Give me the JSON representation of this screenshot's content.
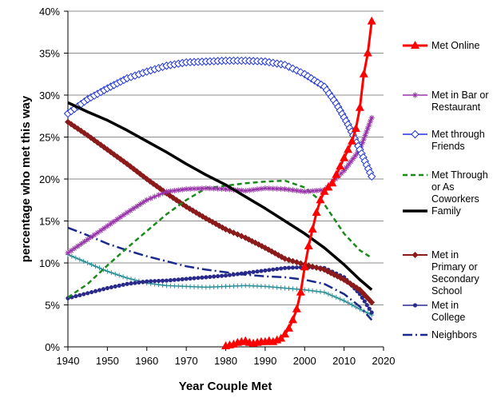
{
  "chart_data": {
    "type": "line",
    "title": "",
    "xlabel": "Year Couple Met",
    "ylabel": "percentage who met this way",
    "xlim": [
      1940,
      2020
    ],
    "ylim": [
      0,
      40
    ],
    "x_ticks": [
      "1940",
      "1950",
      "1960",
      "1970",
      "1980",
      "1990",
      "2000",
      "2010",
      "2020"
    ],
    "y_ticks": [
      "0%",
      "5%",
      "10%",
      "15%",
      "20%",
      "25%",
      "30%",
      "35%",
      "40%"
    ],
    "grid": "horizontal",
    "legend_position": "right",
    "series": [
      {
        "name": "Met Online",
        "color": "#ff0000",
        "dash": "",
        "width": 3,
        "marker": "triangle",
        "points": [
          [
            1980,
            0.1
          ],
          [
            1981,
            0.2
          ],
          [
            1982,
            0.3
          ],
          [
            1983,
            0.5
          ],
          [
            1984,
            0.6
          ],
          [
            1985,
            0.7
          ],
          [
            1986,
            0.5
          ],
          [
            1987,
            0.4
          ],
          [
            1988,
            0.5
          ],
          [
            1989,
            0.6
          ],
          [
            1990,
            0.6
          ],
          [
            1991,
            0.7
          ],
          [
            1992,
            0.6
          ],
          [
            1993,
            0.8
          ],
          [
            1994,
            1.0
          ],
          [
            1995,
            1.5
          ],
          [
            1996,
            2.2
          ],
          [
            1997,
            3.2
          ],
          [
            1998,
            4.5
          ],
          [
            1999,
            6.5
          ],
          [
            2000,
            9.5
          ],
          [
            2001,
            12
          ],
          [
            2002,
            14
          ],
          [
            2003,
            16
          ],
          [
            2004,
            17.5
          ],
          [
            2005,
            18.5
          ],
          [
            2006,
            19
          ],
          [
            2007,
            19.5
          ],
          [
            2008,
            20.5
          ],
          [
            2009,
            21.5
          ],
          [
            2010,
            22.5
          ],
          [
            2011,
            23.5
          ],
          [
            2012,
            24.5
          ],
          [
            2013,
            26
          ],
          [
            2014,
            28.5
          ],
          [
            2015,
            32.5
          ],
          [
            2016,
            35
          ],
          [
            2017,
            38.8
          ]
        ]
      },
      {
        "name": "Met in Bar or Restaurant",
        "color": "#9933aa",
        "dash": "",
        "width": 1.5,
        "marker": "star",
        "points": [
          [
            1940,
            11.2
          ],
          [
            1945,
            12.8
          ],
          [
            1950,
            14.4
          ],
          [
            1955,
            16
          ],
          [
            1960,
            17.5
          ],
          [
            1965,
            18.5
          ],
          [
            1970,
            18.8
          ],
          [
            1975,
            18.9
          ],
          [
            1980,
            18.8
          ],
          [
            1985,
            18.6
          ],
          [
            1990,
            18.9
          ],
          [
            1995,
            18.8
          ],
          [
            2000,
            18.5
          ],
          [
            2005,
            18.7
          ],
          [
            2010,
            21
          ],
          [
            2014,
            23.5
          ],
          [
            2017,
            27.3
          ]
        ]
      },
      {
        "name": "Met through Friends",
        "color": "#1f35d8",
        "dash": "",
        "width": 1.5,
        "marker": "diamond-open",
        "points": [
          [
            1940,
            27.8
          ],
          [
            1945,
            29.5
          ],
          [
            1950,
            30.8
          ],
          [
            1955,
            32
          ],
          [
            1960,
            32.8
          ],
          [
            1965,
            33.5
          ],
          [
            1970,
            33.9
          ],
          [
            1975,
            34
          ],
          [
            1980,
            34.1
          ],
          [
            1985,
            34.1
          ],
          [
            1990,
            34
          ],
          [
            1995,
            33.6
          ],
          [
            2000,
            32.5
          ],
          [
            2005,
            31
          ],
          [
            2008,
            29
          ],
          [
            2011,
            26.5
          ],
          [
            2014,
            23.5
          ],
          [
            2017,
            20.3
          ]
        ]
      },
      {
        "name": "Met Through or As Coworkers",
        "color": "#1a8a1a",
        "dash": "6,4",
        "width": 2.5,
        "marker": "none",
        "points": [
          [
            1940,
            5.9
          ],
          [
            1945,
            7.5
          ],
          [
            1950,
            9.7
          ],
          [
            1955,
            11.8
          ],
          [
            1960,
            13.8
          ],
          [
            1965,
            15.8
          ],
          [
            1970,
            17.5
          ],
          [
            1975,
            18.9
          ],
          [
            1980,
            19.2
          ],
          [
            1985,
            19.5
          ],
          [
            1990,
            19.7
          ],
          [
            1995,
            19.8
          ],
          [
            2000,
            19
          ],
          [
            2005,
            17
          ],
          [
            2010,
            13.5
          ],
          [
            2014,
            11.5
          ],
          [
            2017,
            10.6
          ]
        ]
      },
      {
        "name": "Family",
        "color": "#000000",
        "dash": "",
        "width": 3.5,
        "marker": "none",
        "points": [
          [
            1940,
            29.1
          ],
          [
            1945,
            28
          ],
          [
            1950,
            27
          ],
          [
            1955,
            25.8
          ],
          [
            1960,
            24.5
          ],
          [
            1965,
            23.2
          ],
          [
            1970,
            21.8
          ],
          [
            1975,
            20.5
          ],
          [
            1980,
            19.3
          ],
          [
            1985,
            17.9
          ],
          [
            1990,
            16.5
          ],
          [
            1995,
            15
          ],
          [
            2000,
            13.5
          ],
          [
            2005,
            11.8
          ],
          [
            2010,
            9.8
          ],
          [
            2014,
            8
          ],
          [
            2017,
            6.8
          ]
        ]
      },
      {
        "name": "Met in Primary or Secondary School",
        "color": "#8b1a1a",
        "dash": "",
        "width": 2,
        "marker": "diamond",
        "points": [
          [
            1940,
            26.8
          ],
          [
            1945,
            25.2
          ],
          [
            1950,
            23.5
          ],
          [
            1955,
            21.8
          ],
          [
            1960,
            20
          ],
          [
            1965,
            18.3
          ],
          [
            1970,
            16.7
          ],
          [
            1975,
            15.3
          ],
          [
            1980,
            14
          ],
          [
            1985,
            13
          ],
          [
            1990,
            11.8
          ],
          [
            1995,
            10.5
          ],
          [
            2000,
            9.8
          ],
          [
            2005,
            9.2
          ],
          [
            2010,
            8
          ],
          [
            2014,
            6.8
          ],
          [
            2017,
            5.3
          ]
        ]
      },
      {
        "name": "Met in College",
        "color": "#2a2a8c",
        "dash": "",
        "width": 1.5,
        "marker": "circle",
        "points": [
          [
            1940,
            5.8
          ],
          [
            1945,
            6.4
          ],
          [
            1950,
            7.0
          ],
          [
            1955,
            7.5
          ],
          [
            1960,
            7.8
          ],
          [
            1965,
            7.9
          ],
          [
            1970,
            8.1
          ],
          [
            1975,
            8.3
          ],
          [
            1980,
            8.5
          ],
          [
            1985,
            8.8
          ],
          [
            1990,
            9.1
          ],
          [
            1995,
            9.4
          ],
          [
            2000,
            9.5
          ],
          [
            2005,
            9.4
          ],
          [
            2010,
            8.3
          ],
          [
            2014,
            6.3
          ],
          [
            2017,
            4.1
          ]
        ]
      },
      {
        "name": "Teal series (legend entry not shown)",
        "color": "#2a8f96",
        "dash": "",
        "width": 1.5,
        "marker": "plus",
        "points": [
          [
            1940,
            11
          ],
          [
            1945,
            10
          ],
          [
            1950,
            9
          ],
          [
            1955,
            8.2
          ],
          [
            1960,
            7.6
          ],
          [
            1965,
            7.3
          ],
          [
            1970,
            7.2
          ],
          [
            1975,
            7.1
          ],
          [
            1980,
            7.2
          ],
          [
            1985,
            7.3
          ],
          [
            1990,
            7.2
          ],
          [
            1995,
            7
          ],
          [
            2000,
            6.8
          ],
          [
            2005,
            6.5
          ],
          [
            2010,
            5.5
          ],
          [
            2014,
            4.5
          ],
          [
            2017,
            3.8
          ]
        ]
      },
      {
        "name": "Neighbors",
        "color": "#1a2a8c",
        "dash": "12,4,2,4",
        "width": 2.5,
        "marker": "none",
        "points": [
          [
            1940,
            14.2
          ],
          [
            1945,
            13.3
          ],
          [
            1950,
            12.3
          ],
          [
            1955,
            11.5
          ],
          [
            1960,
            10.8
          ],
          [
            1965,
            10.2
          ],
          [
            1970,
            9.6
          ],
          [
            1975,
            9.2
          ],
          [
            1980,
            8.9
          ],
          [
            1985,
            8.6
          ],
          [
            1990,
            8.4
          ],
          [
            1995,
            8.3
          ],
          [
            2000,
            8
          ],
          [
            2005,
            7.5
          ],
          [
            2010,
            6.3
          ],
          [
            2014,
            4.8
          ],
          [
            2017,
            3.2
          ]
        ]
      }
    ],
    "legend": [
      {
        "series": 0,
        "lines": [
          "Met Online"
        ]
      },
      {
        "series": 1,
        "lines": [
          "Met in Bar or",
          "Restaurant"
        ]
      },
      {
        "series": 2,
        "lines": [
          "Met through",
          "Friends"
        ]
      },
      {
        "series": 3,
        "lines": [
          "Met Through",
          "or As",
          "Coworkers"
        ]
      },
      {
        "series": 4,
        "lines": [
          "Family"
        ]
      },
      {
        "series": 5,
        "lines": [
          "Met in",
          "Primary or",
          "Secondary",
          "School"
        ]
      },
      {
        "series": 6,
        "lines": [
          "Met in",
          "College"
        ]
      },
      {
        "series": 8,
        "lines": [
          "Neighbors"
        ]
      }
    ]
  }
}
